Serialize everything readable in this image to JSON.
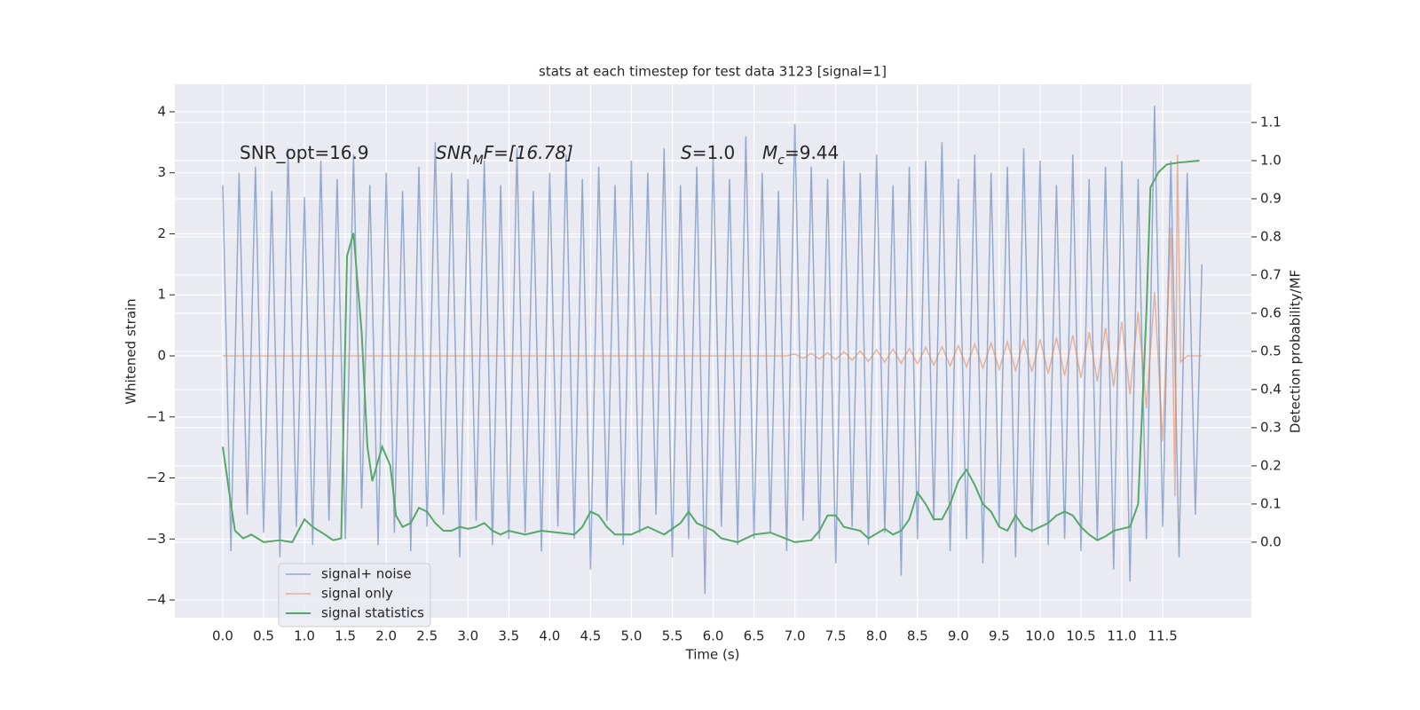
{
  "chart_data": {
    "type": "line",
    "title": "stats at each timestep for test data 3123 [signal=1]",
    "xlabel": "Time (s)",
    "ylabel": "Whitened strain",
    "y2label": "Detection probability/MF",
    "xlim": [
      -0.586,
      12.585
    ],
    "ylim": [
      -4.29,
      4.45
    ],
    "y2lim": [
      -0.198,
      1.2
    ],
    "xticks": [
      {
        "value": 0,
        "label": "0.0"
      },
      0.5,
      {
        "value": 1,
        "label": "1.0"
      },
      1.5,
      {
        "value": 2,
        "label": "2.0"
      },
      2.5,
      {
        "value": 3,
        "label": "3.0"
      },
      3.5,
      {
        "value": 4,
        "label": "4.0"
      },
      4.5,
      {
        "value": 5,
        "label": "5.0"
      },
      5.5,
      {
        "value": 6,
        "label": "6.0"
      },
      6.5,
      {
        "value": 7,
        "label": "7.0"
      },
      7.5,
      {
        "value": 8,
        "label": "8.0"
      },
      8.5,
      {
        "value": 9,
        "label": "9.0"
      },
      9.5,
      {
        "value": 10,
        "label": "10.0"
      },
      10.5,
      {
        "value": 11,
        "label": "11.0"
      },
      11.5
    ],
    "yticks": [
      {
        "value": -4,
        "label": "−4"
      },
      {
        "value": -3,
        "label": "−3"
      },
      {
        "value": -2,
        "label": "−2"
      },
      {
        "value": -1,
        "label": "−1"
      },
      0,
      1,
      2,
      3,
      4
    ],
    "y2ticks": [
      {
        "value": 0,
        "label": "0.0"
      },
      0.1,
      0.2,
      0.3,
      0.4,
      0.5,
      0.6,
      0.7,
      0.8,
      0.9,
      {
        "value": 1,
        "label": "1.0"
      },
      1.1
    ],
    "grid": true,
    "legend": "lower left",
    "annotations": [
      [
        "SNR_opt=16.9"
      ],
      [
        "SNR",
        "M",
        "F=[16.78]"
      ],
      [
        "S",
        "=1.0"
      ],
      [
        "M",
        "c",
        "=9.44"
      ]
    ],
    "series": [
      {
        "name": "signal+ noise",
        "color": "#4c72b0",
        "x": [
          0,
          0.1,
          0.2,
          0.3,
          0.4,
          0.5,
          0.6,
          0.7,
          0.8,
          0.9,
          1,
          1.1,
          1.2,
          1.3,
          1.4,
          1.5,
          1.6,
          1.7,
          1.8,
          1.9,
          2,
          2.1,
          2.2,
          2.3,
          2.4,
          2.5,
          2.6,
          2.7,
          2.8,
          2.9,
          3,
          3.1,
          3.2,
          3.3,
          3.4,
          3.5,
          3.6,
          3.7,
          3.8,
          3.9,
          4,
          4.1,
          4.2,
          4.3,
          4.4,
          4.5,
          4.6,
          4.7,
          4.8,
          4.9,
          5,
          5.1,
          5.2,
          5.3,
          5.4,
          5.5,
          5.6,
          5.7,
          5.8,
          5.9,
          6,
          6.1,
          6.2,
          6.3,
          6.4,
          6.5,
          6.6,
          6.7,
          6.8,
          6.9,
          7,
          7.1,
          7.2,
          7.3,
          7.4,
          7.5,
          7.6,
          7.7,
          7.8,
          7.9,
          8,
          8.1,
          8.2,
          8.3,
          8.4,
          8.5,
          8.6,
          8.7,
          8.8,
          8.9,
          9,
          9.1,
          9.2,
          9.3,
          9.4,
          9.5,
          9.6,
          9.7,
          9.8,
          9.9,
          10,
          10.1,
          10.2,
          10.3,
          10.4,
          10.5,
          10.6,
          10.7,
          10.8,
          10.9,
          11,
          11.1,
          11.2,
          11.3,
          11.4,
          11.5,
          11.6,
          11.7,
          11.8,
          11.9,
          11.98
        ],
        "values": [
          2.8,
          -3.2,
          3.0,
          -2.6,
          3.1,
          -2.9,
          2.7,
          -3.3,
          3.4,
          -2.8,
          2.6,
          -3.1,
          3.2,
          -2.7,
          2.9,
          -3.0,
          3.3,
          -2.5,
          2.8,
          -3.1,
          3.0,
          -2.9,
          2.7,
          -3.2,
          3.1,
          -2.8,
          3.5,
          -2.6,
          3.0,
          -3.3,
          2.9,
          -2.7,
          3.2,
          -3.1,
          2.8,
          -3.0,
          3.4,
          -2.9,
          2.7,
          -3.2,
          3.0,
          -2.8,
          3.3,
          -3.0,
          2.9,
          -3.5,
          3.1,
          -2.7,
          2.8,
          -3.1,
          3.2,
          -2.9,
          3.0,
          -2.6,
          3.4,
          -3.3,
          2.8,
          -3.0,
          3.1,
          -3.9,
          3.3,
          -2.8,
          2.9,
          -3.1,
          3.6,
          -3.0,
          3.0,
          -2.9,
          2.7,
          -3.2,
          3.8,
          -2.7,
          3.1,
          -3.0,
          2.9,
          -3.4,
          3.2,
          -2.8,
          3.0,
          -3.1,
          3.3,
          -2.9,
          2.8,
          -3.6,
          3.1,
          -3.0,
          3.2,
          -2.7,
          3.5,
          -3.2,
          2.9,
          -3.0,
          3.3,
          -3.4,
          3.0,
          -2.8,
          3.1,
          -3.3,
          3.4,
          -2.9,
          3.2,
          -3.1,
          2.8,
          -3.0,
          3.3,
          -3.2,
          2.9,
          -3.0,
          3.1,
          -3.5,
          3.2,
          -3.7,
          2.9,
          -3.0,
          4.1,
          -2.8,
          3.2,
          -3.3,
          3.0,
          -2.6,
          1.5
        ]
      },
      {
        "name": "signal only",
        "color": "#dd8452",
        "x": [
          0,
          6.9,
          7,
          7.1,
          7.2,
          7.3,
          7.4,
          7.5,
          7.6,
          7.7,
          7.8,
          7.9,
          8,
          8.1,
          8.2,
          8.3,
          8.4,
          8.5,
          8.6,
          8.7,
          8.8,
          8.9,
          9,
          9.1,
          9.2,
          9.3,
          9.4,
          9.5,
          9.6,
          9.7,
          9.8,
          9.9,
          10,
          10.1,
          10.2,
          10.3,
          10.4,
          10.5,
          10.6,
          10.7,
          10.8,
          10.9,
          11,
          11.1,
          11.2,
          11.3,
          11.4,
          11.5,
          11.6,
          11.65,
          11.68,
          11.72,
          11.8,
          11.98
        ],
        "values": [
          0,
          0,
          0.03,
          -0.04,
          0.04,
          -0.05,
          0.05,
          -0.06,
          0.07,
          -0.07,
          0.08,
          -0.09,
          0.1,
          -0.1,
          0.11,
          -0.12,
          0.12,
          -0.13,
          0.14,
          -0.15,
          0.15,
          -0.16,
          0.17,
          -0.18,
          0.19,
          -0.2,
          0.21,
          -0.22,
          0.23,
          -0.24,
          0.25,
          -0.26,
          0.27,
          -0.29,
          0.3,
          -0.32,
          0.34,
          -0.36,
          0.39,
          -0.42,
          0.46,
          -0.5,
          0.56,
          -0.63,
          0.72,
          -0.86,
          1.05,
          -1.4,
          2.1,
          -2.3,
          3.3,
          -0.1,
          0,
          0
        ]
      },
      {
        "name": "signal statistics",
        "color": "#55a868",
        "axis": "y2",
        "x": [
          0,
          0.1,
          0.15,
          0.25,
          0.35,
          0.5,
          0.7,
          0.85,
          1,
          1.1,
          1.25,
          1.35,
          1.45,
          1.52,
          1.6,
          1.7,
          1.77,
          1.83,
          1.95,
          2.05,
          2.12,
          2.2,
          2.3,
          2.4,
          2.5,
          2.6,
          2.7,
          2.8,
          2.9,
          3,
          3.1,
          3.2,
          3.3,
          3.4,
          3.5,
          3.7,
          3.9,
          4.1,
          4.3,
          4.4,
          4.5,
          4.6,
          4.7,
          4.8,
          5,
          5.2,
          5.3,
          5.4,
          5.6,
          5.7,
          5.8,
          6,
          6.1,
          6.3,
          6.5,
          6.7,
          7,
          7.2,
          7.3,
          7.4,
          7.5,
          7.6,
          7.8,
          7.9,
          8.1,
          8.2,
          8.3,
          8.4,
          8.5,
          8.6,
          8.7,
          8.8,
          8.9,
          9,
          9.1,
          9.2,
          9.3,
          9.4,
          9.5,
          9.6,
          9.7,
          9.8,
          9.9,
          10.1,
          10.2,
          10.3,
          10.4,
          10.5,
          10.6,
          10.7,
          10.8,
          10.9,
          11,
          11.1,
          11.2,
          11.3,
          11.35,
          11.45,
          11.55,
          11.7,
          11.95
        ],
        "values": [
          0.25,
          0.1,
          0.03,
          0.01,
          0.02,
          0,
          0.005,
          0,
          0.06,
          0.04,
          0.02,
          0.005,
          0.01,
          0.75,
          0.81,
          0.55,
          0.25,
          0.16,
          0.25,
          0.2,
          0.07,
          0.04,
          0.05,
          0.09,
          0.08,
          0.05,
          0.03,
          0.03,
          0.04,
          0.035,
          0.04,
          0.05,
          0.03,
          0.02,
          0.03,
          0.02,
          0.03,
          0.025,
          0.02,
          0.04,
          0.08,
          0.07,
          0.04,
          0.02,
          0.02,
          0.04,
          0.03,
          0.02,
          0.05,
          0.08,
          0.05,
          0.03,
          0.01,
          0,
          0.02,
          0.025,
          0,
          0.005,
          0.03,
          0.07,
          0.07,
          0.04,
          0.03,
          0.01,
          0.035,
          0.02,
          0.03,
          0.06,
          0.13,
          0.1,
          0.06,
          0.06,
          0.1,
          0.16,
          0.19,
          0.15,
          0.1,
          0.08,
          0.04,
          0.03,
          0.07,
          0.04,
          0.03,
          0.05,
          0.07,
          0.08,
          0.07,
          0.04,
          0.02,
          0.005,
          0.015,
          0.03,
          0.035,
          0.04,
          0.1,
          0.6,
          0.93,
          0.97,
          0.99,
          0.995,
          1
        ]
      }
    ]
  }
}
